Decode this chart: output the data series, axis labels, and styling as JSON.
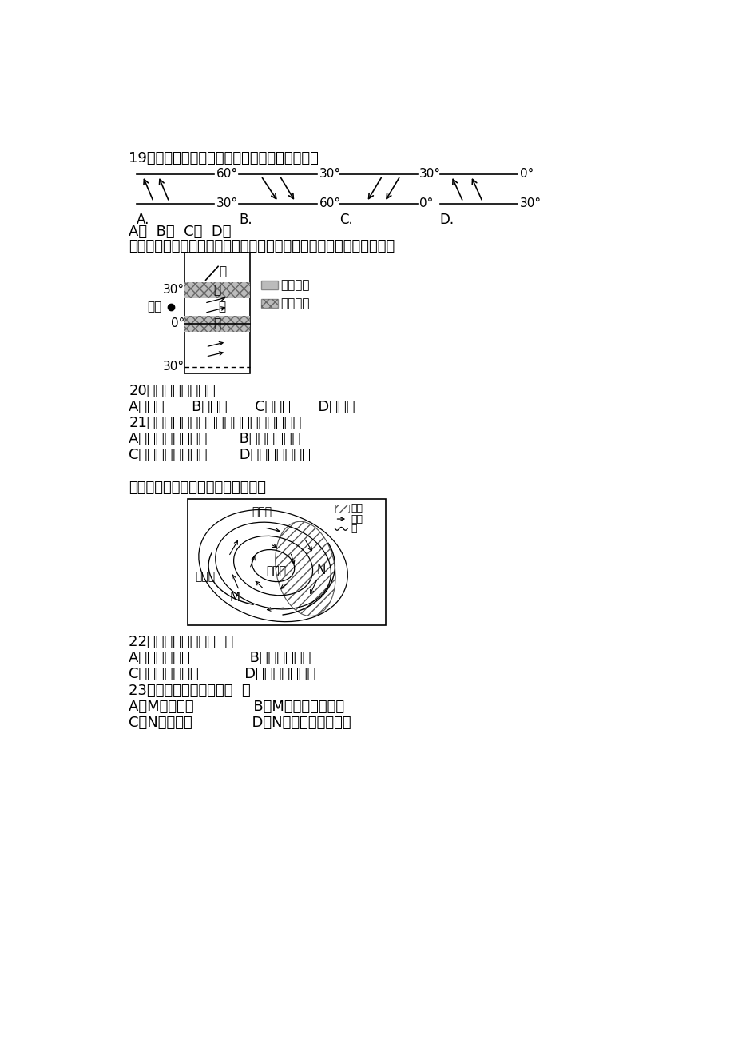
{
  "title": "",
  "bg_color": "#ffffff",
  "text_color": "#000000",
  "q19_text": "19．下列四幅风带图中，表示北半球西风带的是",
  "q19_labels_top": [
    "60°",
    "30°",
    "30°",
    "0°"
  ],
  "q19_labels_bot": [
    "30°",
    "60°",
    "0°",
    "30°"
  ],
  "q_desc2": "下图是「地球上局部气压带、风带分布示意图」，读图回答下列各题。",
  "q20_text": "20．此时，北半球是",
  "q20_choices": "A．春季      B．夏季      C．秋季      D．冬季",
  "q21_text": "21．全年受甲气压带控制形成的气候类型是",
  "q21_A": "A．温带海洋性气候       B．地中海气候",
  "q21_C": "C．亚热带季风气候       D．热带雨林气候",
  "q_desc3": "读某地天气系统图，回答下列问题。",
  "q22_text": "22．该天气系统是（  ）",
  "q22_A": "A．南半球气旋             B．北半球气旋",
  "q22_C": "C．北半球反气旋          D．南半球反气旋",
  "q23_text": "23．下列说法正确的是（  ）",
  "q23_A": "A．M处为暖锋             B．M处雨后气温上升",
  "q23_C": "C．N处为冷锋             D．N处出现连续性降水",
  "ding": "丁",
  "bing": "丙",
  "yi": "乙",
  "jia": "甲",
  "taiyang": "太阳",
  "diqi_low": "低气压带",
  "diqi_high": "高气压带",
  "cold_air": "冷空气",
  "warm_air": "暖空气",
  "rain_zone": "雨区",
  "wind_dir": "风向",
  "front": "锋"
}
